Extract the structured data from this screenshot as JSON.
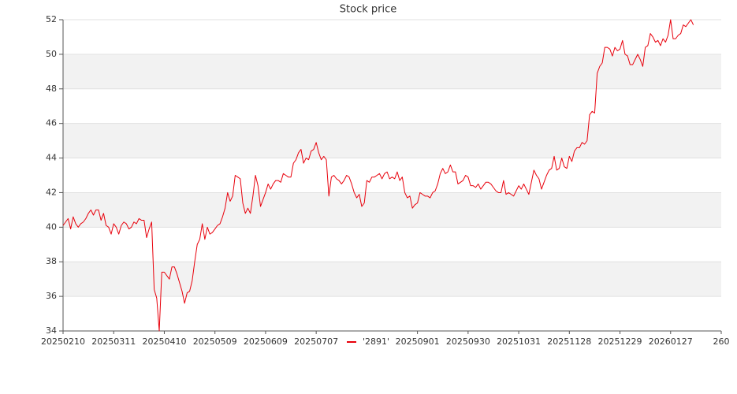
{
  "chart_data": {
    "type": "line",
    "title": "Stock price",
    "categories": [
      "20250210",
      null,
      null,
      null,
      null,
      null,
      null,
      null,
      null,
      null,
      null,
      null,
      null,
      null,
      null,
      null,
      null,
      null,
      null,
      null,
      "20250311",
      null,
      null,
      null,
      null,
      null,
      null,
      null,
      null,
      null,
      null,
      null,
      null,
      null,
      null,
      null,
      null,
      null,
      null,
      null,
      "20250410",
      null,
      null,
      null,
      null,
      null,
      null,
      null,
      null,
      null,
      null,
      null,
      null,
      null,
      null,
      null,
      null,
      null,
      null,
      null,
      "20250509",
      null,
      null,
      null,
      null,
      null,
      null,
      null,
      null,
      null,
      null,
      null,
      null,
      null,
      null,
      null,
      null,
      null,
      null,
      null,
      "20250609",
      null,
      null,
      null,
      null,
      null,
      null,
      null,
      null,
      null,
      null,
      null,
      null,
      null,
      null,
      null,
      null,
      null,
      null,
      null,
      "20250707",
      null,
      null,
      null,
      null,
      null,
      null,
      null,
      null,
      null,
      null,
      null,
      null,
      null,
      null,
      null,
      null,
      null,
      null,
      null,
      null,
      null,
      null,
      null,
      null,
      null,
      null,
      null,
      null,
      null,
      null,
      null,
      null,
      null,
      null,
      null,
      null,
      null,
      null,
      null,
      "20250901",
      null,
      null,
      null,
      null,
      null,
      null,
      null,
      null,
      null,
      null,
      null,
      null,
      null,
      null,
      null,
      null,
      null,
      null,
      null,
      "20250930",
      null,
      null,
      null,
      null,
      null,
      null,
      null,
      null,
      null,
      null,
      null,
      null,
      null,
      null,
      null,
      null,
      null,
      null,
      null,
      "20251031",
      null,
      null,
      null,
      null,
      null,
      null,
      null,
      null,
      null,
      null,
      null,
      null,
      null,
      null,
      null,
      null,
      null,
      null,
      null,
      "20251128",
      null,
      null,
      null,
      null,
      null,
      null,
      null,
      null,
      null,
      null,
      null,
      null,
      null,
      null,
      null,
      null,
      null,
      null,
      null,
      "20251229",
      null,
      null,
      null,
      null,
      null,
      null,
      null,
      null,
      null,
      null,
      null,
      null,
      null,
      null,
      null,
      null,
      null,
      null,
      null,
      "20260127",
      null,
      null,
      null,
      null,
      null,
      null,
      null,
      null,
      null,
      null,
      null,
      null,
      null,
      null,
      null,
      null,
      null,
      null,
      null,
      "260"
    ],
    "series": [
      {
        "name": "'2891'",
        "color": "#e8000b",
        "values": [
          40.1,
          40.3,
          40.5,
          39.9,
          40.6,
          40.2,
          40.0,
          40.2,
          40.3,
          40.5,
          40.8,
          41.0,
          40.7,
          41.0,
          41.0,
          40.4,
          40.8,
          40.1,
          40.0,
          39.6,
          40.2,
          40.0,
          39.6,
          40.1,
          40.3,
          40.2,
          39.9,
          40.0,
          40.3,
          40.2,
          40.5,
          40.4,
          40.4,
          39.4,
          39.9,
          40.3,
          36.4,
          35.9,
          34.0,
          37.4,
          37.4,
          37.2,
          37.0,
          37.7,
          37.7,
          37.3,
          36.8,
          36.3,
          35.6,
          36.2,
          36.3,
          36.9,
          38.0,
          39.0,
          39.3,
          40.2,
          39.3,
          40.0,
          39.6,
          39.7,
          39.9,
          40.1,
          40.2,
          40.6,
          41.1,
          42.0,
          41.5,
          41.8,
          43.0,
          42.9,
          42.8,
          41.4,
          40.8,
          41.1,
          40.8,
          41.8,
          43.0,
          42.4,
          41.2,
          41.6,
          42.0,
          42.5,
          42.2,
          42.5,
          42.7,
          42.7,
          42.6,
          43.1,
          43.0,
          42.9,
          42.9,
          43.7,
          43.9,
          44.3,
          44.5,
          43.7,
          44.0,
          43.9,
          44.4,
          44.5,
          44.9,
          44.3,
          43.9,
          44.1,
          43.9,
          41.8,
          42.9,
          43.0,
          42.8,
          42.7,
          42.5,
          42.7,
          43.0,
          42.9,
          42.5,
          42.0,
          41.7,
          41.9,
          41.2,
          41.4,
          42.7,
          42.6,
          42.9,
          42.9,
          43.0,
          43.1,
          42.8,
          43.1,
          43.2,
          42.8,
          42.9,
          42.8,
          43.2,
          42.7,
          42.9,
          42.0,
          41.7,
          41.8,
          41.1,
          41.3,
          41.4,
          42.0,
          41.9,
          41.8,
          41.8,
          41.7,
          42.0,
          42.1,
          42.5,
          43.1,
          43.4,
          43.1,
          43.2,
          43.6,
          43.2,
          43.2,
          42.5,
          42.6,
          42.7,
          43.0,
          42.9,
          42.4,
          42.4,
          42.3,
          42.5,
          42.2,
          42.4,
          42.6,
          42.6,
          42.5,
          42.3,
          42.1,
          42.0,
          42.0,
          42.7,
          41.9,
          42.0,
          41.9,
          41.8,
          42.1,
          42.4,
          42.2,
          42.5,
          42.2,
          41.9,
          42.6,
          43.3,
          43.0,
          42.8,
          42.2,
          42.6,
          43.0,
          43.3,
          43.4,
          44.1,
          43.3,
          43.4,
          44.0,
          43.5,
          43.4,
          44.1,
          43.8,
          44.4,
          44.6,
          44.6,
          44.9,
          44.8,
          45.0,
          46.5,
          46.7,
          46.6,
          48.9,
          49.3,
          49.5,
          50.4,
          50.4,
          50.3,
          49.9,
          50.4,
          50.2,
          50.3,
          50.8,
          50.0,
          49.9,
          49.4,
          49.4,
          49.7,
          50.0,
          49.7,
          49.3,
          50.4,
          50.5,
          51.2,
          51.0,
          50.7,
          50.8,
          50.5,
          50.9,
          50.7,
          51.1,
          52.0,
          50.9,
          50.9,
          51.1,
          51.2,
          51.7,
          51.6,
          51.8,
          52.0,
          51.7,
          null,
          null,
          null,
          null,
          null,
          null,
          null,
          null,
          null,
          null,
          null
        ]
      }
    ],
    "ylim": [
      34,
      52
    ],
    "yticks": [
      34,
      36,
      38,
      40,
      42,
      44,
      46,
      48,
      50,
      52
    ],
    "grid": true,
    "bands": true,
    "legend": "bottom"
  }
}
